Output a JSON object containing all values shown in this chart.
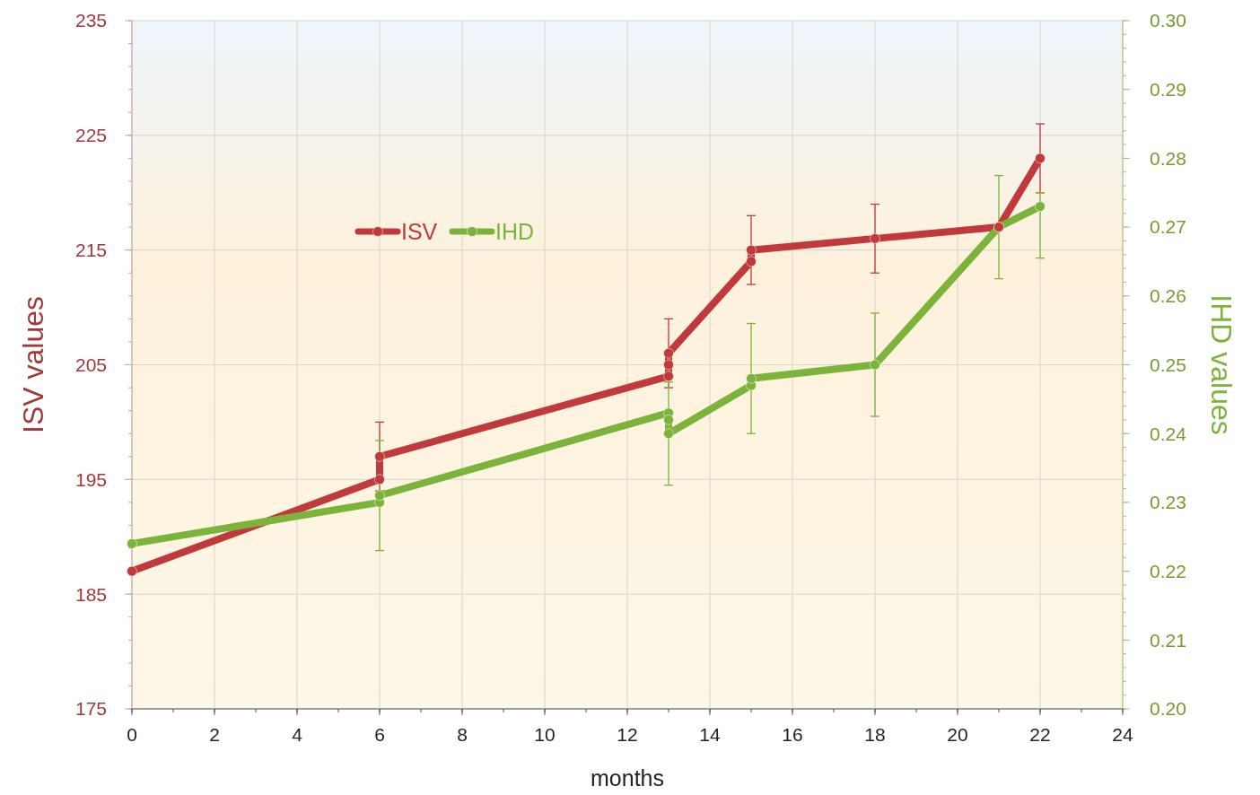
{
  "chart_data": {
    "type": "line",
    "xlabel": "months",
    "ylabel": "ISV values",
    "y2label": "IHD values",
    "xlim": [
      0,
      24
    ],
    "xticks": [
      0,
      2,
      4,
      6,
      8,
      10,
      12,
      14,
      16,
      18,
      20,
      22,
      24
    ],
    "ylim": [
      175,
      235
    ],
    "yticks": [
      175,
      185,
      195,
      205,
      215,
      225,
      235
    ],
    "y2lim": [
      0.2,
      0.3
    ],
    "y2ticks": [
      {
        "value": 0.2,
        "label": "0.20"
      },
      {
        "value": 0.21,
        "label": "0.21"
      },
      {
        "value": 0.22,
        "label": "0.22"
      },
      {
        "value": 0.23,
        "label": "0.23"
      },
      {
        "value": 0.24,
        "label": "0.24"
      },
      {
        "value": 0.25,
        "label": "0.25"
      },
      {
        "value": 0.26,
        "label": "0.26"
      },
      {
        "value": 0.27,
        "label": "0.27"
      },
      {
        "value": 0.28,
        "label": "0.28"
      },
      {
        "value": 0.29,
        "label": "0.29"
      },
      {
        "value": 0.3,
        "label": "0.30"
      }
    ],
    "grid": true,
    "legend": "top",
    "marker": "circle",
    "series": [
      {
        "name": "ISV",
        "color": "#c0393b",
        "x": [
          0,
          6,
          6,
          13,
          13,
          13,
          15,
          15,
          18,
          21,
          22
        ],
        "values": [
          187,
          195,
          197,
          204,
          205,
          206,
          214,
          215,
          216,
          217,
          223
        ],
        "errors": [
          null,
          null,
          3,
          null,
          null,
          3,
          null,
          3,
          3,
          null,
          3
        ]
      },
      {
        "name": "IHD",
        "color": "#7cb33a",
        "axis": "y2",
        "x": [
          0,
          6,
          6,
          13,
          13,
          13,
          15,
          15,
          18,
          21,
          22
        ],
        "values": [
          0.224,
          0.23,
          0.231,
          0.243,
          0.242,
          0.24,
          0.247,
          0.248,
          0.25,
          0.27,
          0.273
        ],
        "errors": [
          null,
          null,
          0.008,
          null,
          null,
          0.0075,
          null,
          0.008,
          0.0075,
          0.0075,
          [
            0.2655,
            0.275
          ]
        ]
      }
    ]
  }
}
